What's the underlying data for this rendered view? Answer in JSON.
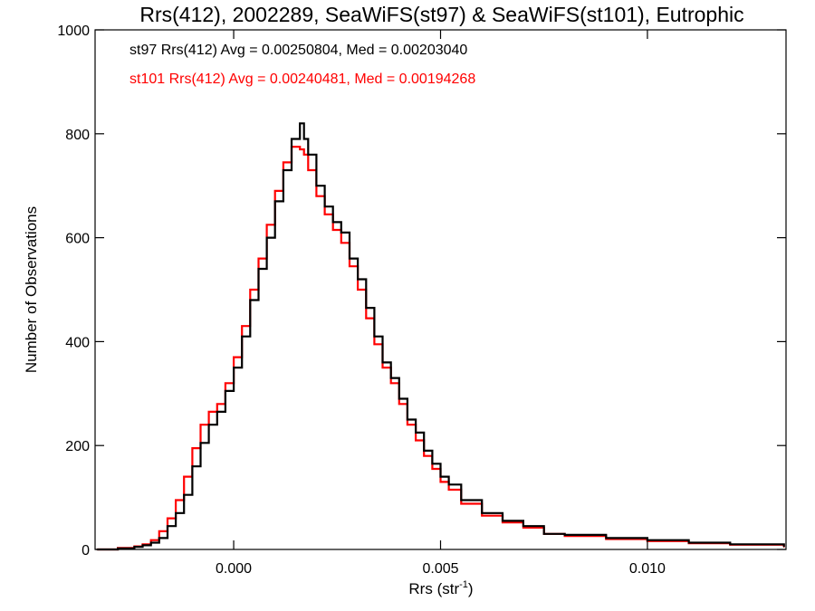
{
  "chart_data": {
    "type": "line",
    "style": "histogram-step",
    "title": "Rrs(412), 2002289, SeaWiFS(st97) & SeaWiFS(st101), Eutrophic",
    "xlabel_main": "Rrs (str",
    "xlabel_sup": "-1",
    "xlabel_close": ")",
    "ylabel": "Number of Observations",
    "xlim": [
      -0.00335,
      0.01335
    ],
    "ylim": [
      0,
      1000
    ],
    "x_ticks": [
      0.0,
      0.005,
      0.01
    ],
    "x_tick_labels": [
      "0.000",
      "0.005",
      "0.010"
    ],
    "y_ticks": [
      0,
      200,
      400,
      600,
      800,
      1000
    ],
    "y_tick_labels": [
      "0",
      "200",
      "400",
      "600",
      "800",
      "1000"
    ],
    "grid": false,
    "legend_placement": "top-left",
    "series": [
      {
        "name": "st97 Rrs(412) Avg = 0.00250804, Med = 0.00203040",
        "color": "#000000",
        "x": [
          -0.0033,
          -0.0028,
          -0.0024,
          -0.0022,
          -0.002,
          -0.0018,
          -0.0016,
          -0.0014,
          -0.0012,
          -0.001,
          -0.0008,
          -0.0006,
          -0.0004,
          -0.0002,
          0.0,
          0.0002,
          0.0004,
          0.0006,
          0.0008,
          0.001,
          0.0012,
          0.0014,
          0.0016,
          0.0017,
          0.0018,
          0.002,
          0.0022,
          0.0024,
          0.0026,
          0.0028,
          0.003,
          0.0032,
          0.0034,
          0.0036,
          0.0038,
          0.004,
          0.0042,
          0.0044,
          0.0046,
          0.0048,
          0.005,
          0.0052,
          0.0055,
          0.006,
          0.0065,
          0.007,
          0.0075,
          0.008,
          0.009,
          0.01,
          0.011,
          0.012,
          0.0133
        ],
        "values": [
          0,
          2,
          5,
          8,
          13,
          22,
          45,
          70,
          105,
          160,
          205,
          240,
          265,
          305,
          350,
          410,
          480,
          540,
          600,
          670,
          730,
          790,
          820,
          790,
          760,
          700,
          660,
          630,
          610,
          560,
          520,
          465,
          410,
          360,
          330,
          290,
          250,
          225,
          190,
          165,
          140,
          125,
          95,
          70,
          55,
          45,
          30,
          28,
          22,
          18,
          13,
          10,
          6
        ]
      },
      {
        "name": "st101 Rrs(412) Avg = 0.00240481, Med = 0.00194268",
        "color": "#ff0000",
        "x": [
          -0.0033,
          -0.0028,
          -0.0024,
          -0.0022,
          -0.002,
          -0.0018,
          -0.0016,
          -0.0014,
          -0.0012,
          -0.001,
          -0.0008,
          -0.0006,
          -0.0004,
          -0.0002,
          0.0,
          0.0002,
          0.0004,
          0.0006,
          0.0008,
          0.001,
          0.0012,
          0.0014,
          0.0016,
          0.0017,
          0.0018,
          0.002,
          0.0022,
          0.0024,
          0.0026,
          0.0028,
          0.003,
          0.0032,
          0.0034,
          0.0036,
          0.0038,
          0.004,
          0.0042,
          0.0044,
          0.0046,
          0.0048,
          0.005,
          0.0052,
          0.0055,
          0.006,
          0.0065,
          0.007,
          0.0075,
          0.008,
          0.009,
          0.01,
          0.011,
          0.012,
          0.0133
        ],
        "values": [
          0,
          3,
          6,
          10,
          18,
          35,
          60,
          95,
          140,
          195,
          240,
          265,
          280,
          320,
          370,
          430,
          500,
          560,
          625,
          690,
          745,
          775,
          770,
          760,
          730,
          680,
          645,
          615,
          590,
          545,
          500,
          445,
          395,
          350,
          320,
          280,
          240,
          210,
          180,
          155,
          130,
          115,
          88,
          65,
          52,
          42,
          30,
          26,
          20,
          16,
          12,
          9,
          5
        ]
      }
    ]
  }
}
